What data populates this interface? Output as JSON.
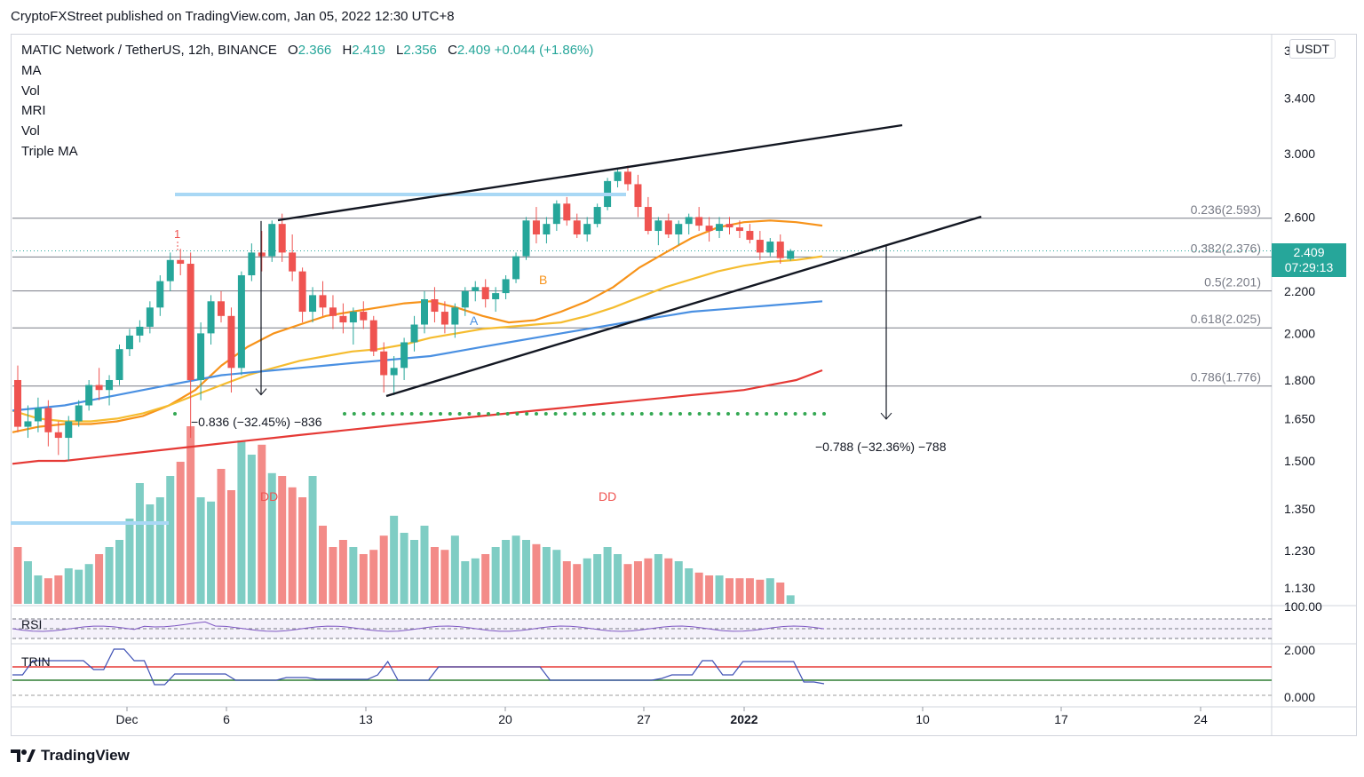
{
  "header": {
    "publisher": "CryptoFXStreet published on TradingView.com, Jan 05, 2022 12:30 UTC+8"
  },
  "legend": {
    "symbol": "MATIC Network / TetherUS, 12h, BINANCE",
    "open_key": "O",
    "open": "2.366",
    "high_key": "H",
    "high": "2.419",
    "low_key": "L",
    "low": "2.356",
    "close_key": "C",
    "close": "2.409",
    "change": "+0.044 (+1.86%)",
    "indicators": [
      "MA",
      "Vol",
      "MRI",
      "Vol",
      "Triple MA"
    ]
  },
  "price_scale": {
    "currency": "USDT",
    "current_price": "2.409",
    "countdown": "07:29:13",
    "top_tick": "3",
    "ticks": [
      "3.400",
      "3.000",
      "2.600",
      "2.200",
      "2.000",
      "1.800",
      "1.650",
      "1.500",
      "1.350",
      "1.230",
      "1.130"
    ]
  },
  "rsi_pane": {
    "label": "RSI",
    "scale_top": "100.00"
  },
  "trin_pane": {
    "label": "TRIN",
    "ticks": [
      "2.000",
      "0.000"
    ]
  },
  "time_axis": [
    "Dec",
    "6",
    "13",
    "20",
    "27",
    "2022",
    "10",
    "17",
    "24"
  ],
  "branding": {
    "name": "TradingView"
  },
  "colors": {
    "up": "#26a69a",
    "down": "#ef5350",
    "ma_orange": "#f7931a",
    "ma_yellow": "#f5bc2f",
    "ma_blue": "#4a90e2",
    "ma_red": "#e53935",
    "level": "#9aa0a6"
  },
  "chart_data": {
    "type": "candlestick",
    "title": "MATIC Network / TetherUS, 12h, BINANCE",
    "xlabel": "",
    "ylabel": "USDT",
    "ylim": [
      1.08,
      3.9
    ],
    "fib_levels": [
      {
        "label": "0.236(2.593)",
        "value": 2.593
      },
      {
        "label": "0.382(2.376)",
        "value": 2.376
      },
      {
        "label": "0.5(2.201)",
        "value": 2.201
      },
      {
        "label": "0.618(2.025)",
        "value": 2.025
      },
      {
        "label": "0.786(1.776)",
        "value": 1.776
      }
    ],
    "measurements": [
      {
        "label": "−0.836 (−32.45%) −836",
        "from": 2.577,
        "to": 1.741
      },
      {
        "label": "−0.788 (−32.36%) −788",
        "from": 2.436,
        "to": 1.648
      }
    ],
    "annotations": [
      {
        "text": "1",
        "color": "#ef5350"
      },
      {
        "text": "DD",
        "color": "#ef5350"
      },
      {
        "text": "DD",
        "color": "#ef5350"
      },
      {
        "text": "A",
        "color": "#4a90e2"
      },
      {
        "text": "B",
        "color": "#f7931a"
      }
    ],
    "candles": [
      [
        1.8,
        1.86,
        1.6,
        1.62
      ],
      [
        1.62,
        1.7,
        1.58,
        1.64
      ],
      [
        1.64,
        1.73,
        1.6,
        1.69
      ],
      [
        1.69,
        1.72,
        1.55,
        1.6
      ],
      [
        1.6,
        1.64,
        1.52,
        1.58
      ],
      [
        1.58,
        1.66,
        1.5,
        1.64
      ],
      [
        1.64,
        1.72,
        1.62,
        1.7
      ],
      [
        1.7,
        1.8,
        1.68,
        1.78
      ],
      [
        1.78,
        1.85,
        1.72,
        1.76
      ],
      [
        1.76,
        1.82,
        1.7,
        1.8
      ],
      [
        1.8,
        1.95,
        1.78,
        1.93
      ],
      [
        1.93,
        2.02,
        1.9,
        1.99
      ],
      [
        1.99,
        2.06,
        1.96,
        2.03
      ],
      [
        2.03,
        2.15,
        2.0,
        2.12
      ],
      [
        2.12,
        2.28,
        2.08,
        2.25
      ],
      [
        2.25,
        2.4,
        2.2,
        2.36
      ],
      [
        2.36,
        2.42,
        2.28,
        2.34
      ],
      [
        2.34,
        2.4,
        1.58,
        1.8
      ],
      [
        1.8,
        2.05,
        1.72,
        2.0
      ],
      [
        2.0,
        2.18,
        1.95,
        2.15
      ],
      [
        2.15,
        2.2,
        2.05,
        2.08
      ],
      [
        2.08,
        2.12,
        1.75,
        1.85
      ],
      [
        1.85,
        2.3,
        1.82,
        2.28
      ],
      [
        2.28,
        2.45,
        2.25,
        2.4
      ],
      [
        2.4,
        2.52,
        2.3,
        2.38
      ],
      [
        2.38,
        2.58,
        2.35,
        2.56
      ],
      [
        2.56,
        2.62,
        2.35,
        2.4
      ],
      [
        2.4,
        2.5,
        2.25,
        2.3
      ],
      [
        2.3,
        2.32,
        2.05,
        2.1
      ],
      [
        2.1,
        2.22,
        2.05,
        2.18
      ],
      [
        2.18,
        2.25,
        2.08,
        2.12
      ],
      [
        2.12,
        2.18,
        2.02,
        2.08
      ],
      [
        2.08,
        2.14,
        2.0,
        2.05
      ],
      [
        2.05,
        2.12,
        1.95,
        2.1
      ],
      [
        2.1,
        2.15,
        2.02,
        2.06
      ],
      [
        2.06,
        2.08,
        1.9,
        1.92
      ],
      [
        1.92,
        1.96,
        1.75,
        1.82
      ],
      [
        1.82,
        1.9,
        1.74,
        1.85
      ],
      [
        1.85,
        1.98,
        1.8,
        1.96
      ],
      [
        1.96,
        2.08,
        1.92,
        2.04
      ],
      [
        2.04,
        2.2,
        2.0,
        2.16
      ],
      [
        2.16,
        2.22,
        2.05,
        2.1
      ],
      [
        2.1,
        2.15,
        2.0,
        2.04
      ],
      [
        2.04,
        2.14,
        1.98,
        2.12
      ],
      [
        2.12,
        2.22,
        2.08,
        2.2
      ],
      [
        2.2,
        2.25,
        2.15,
        2.22
      ],
      [
        2.22,
        2.26,
        2.12,
        2.16
      ],
      [
        2.16,
        2.22,
        2.1,
        2.19
      ],
      [
        2.19,
        2.28,
        2.16,
        2.26
      ],
      [
        2.26,
        2.4,
        2.24,
        2.38
      ],
      [
        2.38,
        2.6,
        2.36,
        2.58
      ],
      [
        2.58,
        2.66,
        2.45,
        2.5
      ],
      [
        2.5,
        2.6,
        2.45,
        2.56
      ],
      [
        2.56,
        2.7,
        2.52,
        2.68
      ],
      [
        2.68,
        2.72,
        2.55,
        2.58
      ],
      [
        2.58,
        2.62,
        2.48,
        2.5
      ],
      [
        2.5,
        2.6,
        2.46,
        2.56
      ],
      [
        2.56,
        2.68,
        2.54,
        2.66
      ],
      [
        2.66,
        2.84,
        2.64,
        2.82
      ],
      [
        2.82,
        2.9,
        2.78,
        2.88
      ],
      [
        2.88,
        2.92,
        2.76,
        2.8
      ],
      [
        2.8,
        2.86,
        2.6,
        2.66
      ],
      [
        2.66,
        2.72,
        2.5,
        2.52
      ],
      [
        2.52,
        2.6,
        2.44,
        2.58
      ],
      [
        2.58,
        2.62,
        2.48,
        2.5
      ],
      [
        2.5,
        2.58,
        2.44,
        2.56
      ],
      [
        2.56,
        2.62,
        2.5,
        2.6
      ],
      [
        2.6,
        2.66,
        2.52,
        2.55
      ],
      [
        2.55,
        2.6,
        2.46,
        2.52
      ],
      [
        2.52,
        2.6,
        2.48,
        2.56
      ],
      [
        2.56,
        2.6,
        2.5,
        2.54
      ],
      [
        2.54,
        2.58,
        2.48,
        2.52
      ],
      [
        2.52,
        2.56,
        2.45,
        2.47
      ],
      [
        2.47,
        2.52,
        2.36,
        2.4
      ],
      [
        2.4,
        2.48,
        2.38,
        2.46
      ],
      [
        2.46,
        2.5,
        2.34,
        2.37
      ],
      [
        2.366,
        2.419,
        2.356,
        2.409
      ]
    ],
    "volume": [
      0.4,
      0.3,
      0.2,
      0.18,
      0.2,
      0.25,
      0.24,
      0.28,
      0.35,
      0.4,
      0.45,
      0.6,
      0.85,
      0.7,
      0.75,
      0.9,
      1.0,
      1.25,
      0.75,
      0.72,
      0.95,
      0.8,
      1.15,
      1.05,
      1.12,
      0.92,
      0.9,
      0.82,
      0.75,
      0.9,
      0.55,
      0.4,
      0.45,
      0.4,
      0.35,
      0.38,
      0.48,
      0.62,
      0.5,
      0.45,
      0.55,
      0.4,
      0.38,
      0.48,
      0.3,
      0.32,
      0.35,
      0.4,
      0.45,
      0.48,
      0.45,
      0.42,
      0.4,
      0.38,
      0.3,
      0.28,
      0.32,
      0.35,
      0.4,
      0.35,
      0.28,
      0.3,
      0.32,
      0.35,
      0.32,
      0.3,
      0.25,
      0.22,
      0.2,
      0.2,
      0.18,
      0.18,
      0.18,
      0.17,
      0.18,
      0.15,
      0.06
    ],
    "series": [
      {
        "name": "MA orange",
        "values": [
          1.6,
          1.62,
          1.63,
          1.63,
          1.64,
          1.66,
          1.7,
          1.76,
          1.86,
          1.94,
          2.0,
          2.04,
          2.08,
          2.1,
          2.12,
          2.14,
          2.15,
          2.12,
          2.08,
          2.05,
          2.06,
          2.1,
          2.15,
          2.22,
          2.32,
          2.4,
          2.48,
          2.54,
          2.57,
          2.58,
          2.57,
          2.55
        ]
      },
      {
        "name": "MA yellow",
        "values": [
          1.68,
          1.65,
          1.64,
          1.64,
          1.65,
          1.67,
          1.7,
          1.74,
          1.78,
          1.82,
          1.85,
          1.88,
          1.9,
          1.92,
          1.93,
          1.95,
          1.98,
          2.0,
          2.02,
          2.03,
          2.04,
          2.05,
          2.08,
          2.12,
          2.17,
          2.22,
          2.26,
          2.3,
          2.33,
          2.35,
          2.36,
          2.38
        ]
      },
      {
        "name": "MA blue",
        "values": [
          1.68,
          1.69,
          1.7,
          1.72,
          1.74,
          1.76,
          1.78,
          1.8,
          1.82,
          1.83,
          1.84,
          1.85,
          1.86,
          1.87,
          1.88,
          1.89,
          1.9,
          1.92,
          1.94,
          1.96,
          1.98,
          2.0,
          2.02,
          2.04,
          2.06,
          2.08,
          2.1,
          2.11,
          2.12,
          2.13,
          2.14,
          2.15
        ]
      },
      {
        "name": "MA red",
        "values": [
          1.49,
          1.5,
          1.5,
          1.51,
          1.52,
          1.53,
          1.54,
          1.55,
          1.56,
          1.57,
          1.58,
          1.59,
          1.6,
          1.61,
          1.62,
          1.63,
          1.64,
          1.65,
          1.66,
          1.67,
          1.68,
          1.69,
          1.7,
          1.71,
          1.72,
          1.73,
          1.74,
          1.75,
          1.76,
          1.78,
          1.8,
          1.84
        ]
      }
    ]
  }
}
